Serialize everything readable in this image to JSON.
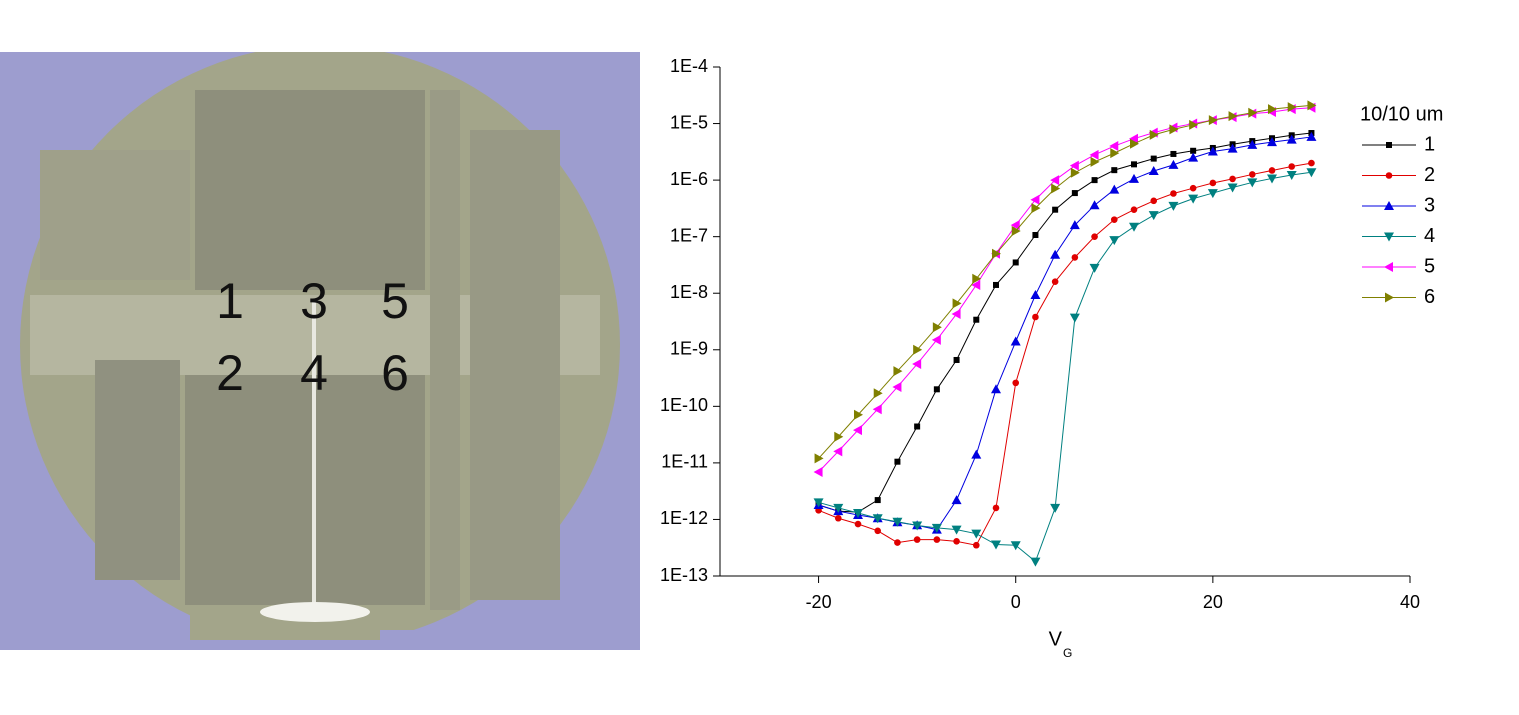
{
  "photo_labels": [
    "1",
    "2",
    "3",
    "4",
    "5",
    "6"
  ],
  "chart_data": {
    "type": "line",
    "x_label": "V",
    "x_label_subscript": "G",
    "legend_title": "10/10 um",
    "legend": "upper right",
    "yscale": "log",
    "xlim": [
      -30,
      40
    ],
    "xticks": [
      -20,
      0,
      20,
      40
    ],
    "ylim": [
      1e-13,
      0.0001
    ],
    "yticks": [
      {
        "value": 1e-13,
        "label": "1E-13"
      },
      {
        "value": 1e-12,
        "label": "1E-12"
      },
      {
        "value": 1e-11,
        "label": "1E-11"
      },
      {
        "value": 1e-10,
        "label": "1E-10"
      },
      {
        "value": 1e-09,
        "label": "1E-9"
      },
      {
        "value": 1e-08,
        "label": "1E-8"
      },
      {
        "value": 1e-07,
        "label": "1E-7"
      },
      {
        "value": 1e-06,
        "label": "1E-6"
      },
      {
        "value": 1e-05,
        "label": "1E-5"
      },
      {
        "value": 0.0001,
        "label": "1E-4"
      }
    ],
    "x": [
      -20,
      -18,
      -16,
      -14,
      -12,
      -10,
      -8,
      -6,
      -4,
      -2,
      0,
      2,
      4,
      6,
      8,
      10,
      12,
      14,
      16,
      18,
      20,
      22,
      24,
      26,
      28,
      30
    ],
    "series": [
      {
        "name": "1",
        "color": "#000000",
        "marker": "square",
        "values": [
          1.8e-12,
          1.4e-12,
          1.35e-12,
          2.2e-12,
          1.05e-11,
          4.4e-11,
          2e-10,
          6.6e-10,
          3.4e-09,
          1.4e-08,
          3.5e-08,
          1.07e-07,
          3e-07,
          5.9e-07,
          1e-06,
          1.5e-06,
          1.9e-06,
          2.4e-06,
          2.9e-06,
          3.3e-06,
          3.7e-06,
          4.3e-06,
          4.9e-06,
          5.5e-06,
          6.2e-06,
          6.8e-06
        ]
      },
      {
        "name": "2",
        "color": "#e00000",
        "marker": "circle",
        "values": [
          1.45e-12,
          1.05e-12,
          8.3e-13,
          6.3e-13,
          3.9e-13,
          4.4e-13,
          4.4e-13,
          4.1e-13,
          3.5e-13,
          1.6e-12,
          2.6e-10,
          3.8e-09,
          1.6e-08,
          4.3e-08,
          1e-07,
          2e-07,
          3e-07,
          4.3e-07,
          5.8e-07,
          7.2e-07,
          8.9e-07,
          1.05e-06,
          1.26e-06,
          1.48e-06,
          1.74e-06,
          2e-06
        ]
      },
      {
        "name": "3",
        "color": "#0000e0",
        "marker": "triangle-up",
        "values": [
          1.8e-12,
          1.4e-12,
          1.2e-12,
          1.05e-12,
          8.9e-13,
          7.9e-13,
          6.6e-13,
          2.2e-12,
          1.4e-11,
          2e-10,
          1.4e-09,
          9.3e-09,
          4.8e-08,
          1.6e-07,
          3.6e-07,
          6.8e-07,
          1.05e-06,
          1.45e-06,
          1.86e-06,
          2.5e-06,
          3.2e-06,
          3.6e-06,
          4.2e-06,
          4.7e-06,
          5.2e-06,
          5.8e-06
        ]
      },
      {
        "name": "4",
        "color": "#008080",
        "marker": "triangle-down",
        "values": [
          2e-12,
          1.6e-12,
          1.3e-12,
          1.05e-12,
          9.1e-13,
          7.8e-13,
          7.1e-13,
          6.6e-13,
          5.6e-13,
          3.6e-13,
          3.5e-13,
          1.8e-13,
          1.6e-12,
          3.7e-09,
          2.8e-08,
          8.7e-08,
          1.5e-07,
          2.4e-07,
          3.5e-07,
          4.7e-07,
          5.9e-07,
          7.4e-07,
          9.1e-07,
          1.07e-06,
          1.23e-06,
          1.38e-06
        ]
      },
      {
        "name": "5",
        "color": "#ff00ff",
        "marker": "triangle-left",
        "values": [
          6.9e-12,
          1.6e-11,
          3.8e-11,
          8.9e-11,
          2.2e-10,
          5.6e-10,
          1.5e-09,
          4.3e-09,
          1.4e-08,
          5e-08,
          1.6e-07,
          4.5e-07,
          1e-06,
          1.8e-06,
          2.8e-06,
          4e-06,
          5.4e-06,
          6.9e-06,
          8.5e-06,
          1e-05,
          1.15e-05,
          1.3e-05,
          1.5e-05,
          1.6e-05,
          1.8e-05,
          1.9e-05
        ]
      },
      {
        "name": "6",
        "color": "#808000",
        "marker": "triangle-right",
        "values": [
          1.2e-11,
          2.9e-11,
          7.1e-11,
          1.7e-10,
          4.2e-10,
          1e-09,
          2.5e-09,
          6.6e-09,
          1.8e-08,
          5e-08,
          1.26e-07,
          3.2e-07,
          7.1e-07,
          1.35e-06,
          2.1e-06,
          3e-06,
          4.4e-06,
          6.3e-06,
          7.9e-06,
          9.5e-06,
          1.15e-05,
          1.35e-05,
          1.55e-05,
          1.8e-05,
          1.95e-05,
          2.1e-05
        ]
      }
    ]
  }
}
